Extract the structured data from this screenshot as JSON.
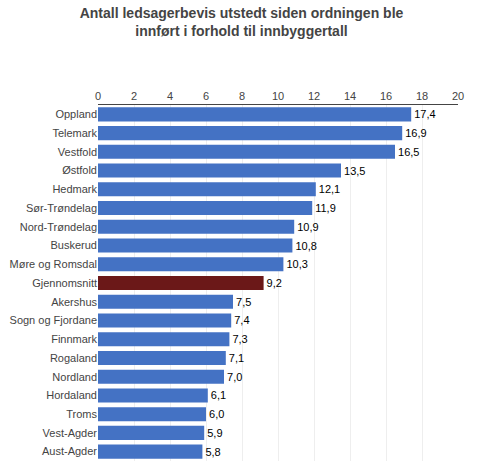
{
  "chart_data": {
    "type": "bar",
    "orientation": "horizontal",
    "title": "Antall ledsagerbevis utstedt siden ordningen ble\ninnført i forhold til innbyggertall",
    "categories": [
      "Aust-Agder",
      "Vest-Agder",
      "Troms",
      "Hordaland",
      "Nordland",
      "Rogaland",
      "Finnmark",
      "Sogn og Fjordane",
      "Akershus",
      "Gjennomsnitt",
      "Møre og Romsdal",
      "Buskerud",
      "Nord-Trøndelag",
      "Sør-Trøndelag",
      "Hedmark",
      "Østfold",
      "Vestfold",
      "Telemark",
      "Oppland"
    ],
    "values": [
      5.8,
      5.9,
      6.0,
      6.1,
      7.0,
      7.1,
      7.3,
      7.4,
      7.5,
      9.2,
      10.3,
      10.8,
      10.9,
      11.9,
      12.1,
      13.5,
      16.5,
      16.9,
      17.4
    ],
    "value_labels": [
      "5,8",
      "5,9",
      "6,0",
      "6,1",
      "7,0",
      "7,1",
      "7,3",
      "7,4",
      "7,5",
      "9,2",
      "10,3",
      "10,8",
      "10,9",
      "11,9",
      "12,1",
      "13,5",
      "16,5",
      "16,9",
      "17,4"
    ],
    "colors": [
      "#4472C4",
      "#4472C4",
      "#4472C4",
      "#4472C4",
      "#4472C4",
      "#4472C4",
      "#4472C4",
      "#4472C4",
      "#4472C4",
      "#6B1818",
      "#4472C4",
      "#4472C4",
      "#4472C4",
      "#4472C4",
      "#4472C4",
      "#4472C4",
      "#4472C4",
      "#4472C4",
      "#4472C4"
    ],
    "xlim": [
      0,
      20
    ],
    "xticks": [
      0,
      2,
      4,
      6,
      8,
      10,
      12,
      14,
      16,
      18,
      20
    ],
    "grid": true,
    "data_labels": true
  }
}
